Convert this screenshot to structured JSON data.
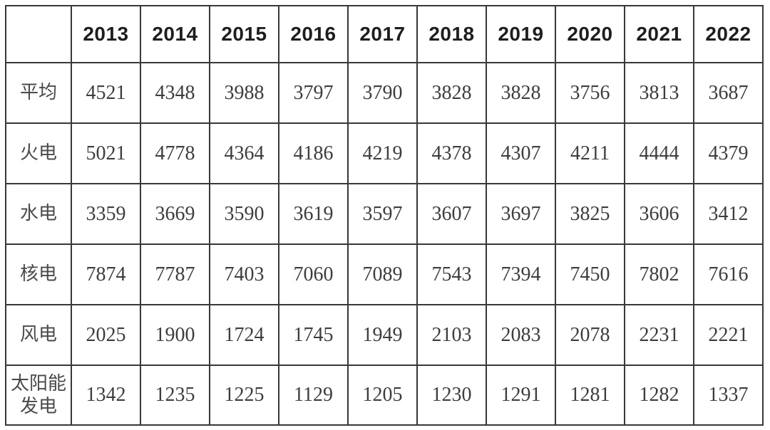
{
  "table": {
    "corner_label": "",
    "columns": [
      "2013",
      "2014",
      "2015",
      "2016",
      "2017",
      "2018",
      "2019",
      "2020",
      "2021",
      "2022"
    ],
    "rows": [
      {
        "label": "平均",
        "values": [
          "4521",
          "4348",
          "3988",
          "3797",
          "3790",
          "3828",
          "3828",
          "3756",
          "3813",
          "3687"
        ]
      },
      {
        "label": "火电",
        "values": [
          "5021",
          "4778",
          "4364",
          "4186",
          "4219",
          "4378",
          "4307",
          "4211",
          "4444",
          "4379"
        ]
      },
      {
        "label": "水电",
        "values": [
          "3359",
          "3669",
          "3590",
          "3619",
          "3597",
          "3607",
          "3697",
          "3825",
          "3606",
          "3412"
        ]
      },
      {
        "label": "核电",
        "values": [
          "7874",
          "7787",
          "7403",
          "7060",
          "7089",
          "7543",
          "7394",
          "7450",
          "7802",
          "7616"
        ]
      },
      {
        "label": "风电",
        "values": [
          "2025",
          "1900",
          "1724",
          "1745",
          "1949",
          "2103",
          "2083",
          "2078",
          "2231",
          "2221"
        ]
      },
      {
        "label": "太阳能发电",
        "values": [
          "1342",
          "1235",
          "1225",
          "1129",
          "1205",
          "1230",
          "1291",
          "1281",
          "1282",
          "1337"
        ]
      }
    ],
    "colors": {
      "border": "#383838",
      "header_text": "#1e1e1e",
      "value_text": "#3d3d3d",
      "label_text": "#4a4a4a",
      "background": "#ffffff"
    }
  },
  "chart_data": {
    "type": "table",
    "categories": [
      "2013",
      "2014",
      "2015",
      "2016",
      "2017",
      "2018",
      "2019",
      "2020",
      "2021",
      "2022"
    ],
    "series": [
      {
        "name": "平均",
        "values": [
          4521,
          4348,
          3988,
          3797,
          3790,
          3828,
          3828,
          3756,
          3813,
          3687
        ]
      },
      {
        "name": "火电",
        "values": [
          5021,
          4778,
          4364,
          4186,
          4219,
          4378,
          4307,
          4211,
          4444,
          4379
        ]
      },
      {
        "name": "水电",
        "values": [
          3359,
          3669,
          3590,
          3619,
          3597,
          3607,
          3697,
          3825,
          3606,
          3412
        ]
      },
      {
        "name": "核电",
        "values": [
          7874,
          7787,
          7403,
          7060,
          7089,
          7543,
          7394,
          7450,
          7802,
          7616
        ]
      },
      {
        "name": "风电",
        "values": [
          2025,
          1900,
          1724,
          1745,
          1949,
          2103,
          2083,
          2078,
          2231,
          2221
        ]
      },
      {
        "name": "太阳能发电",
        "values": [
          1342,
          1235,
          1225,
          1129,
          1205,
          1230,
          1291,
          1281,
          1282,
          1337
        ]
      }
    ],
    "title": "",
    "xlabel": "",
    "ylabel": "",
    "legend": false,
    "grid": true
  }
}
